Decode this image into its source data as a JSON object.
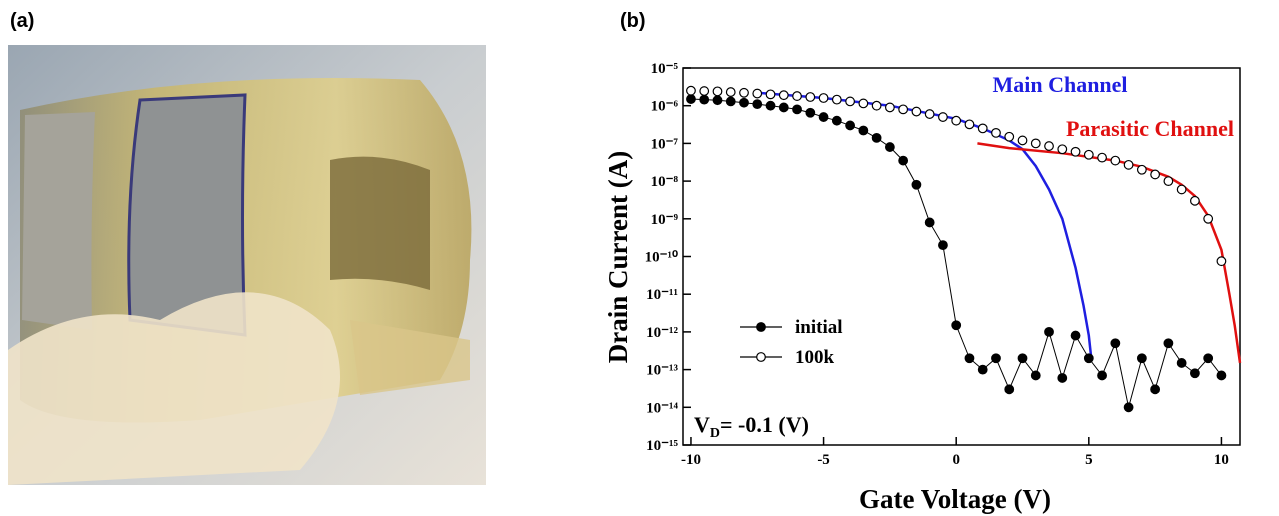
{
  "panel_labels": [
    "(a)",
    "(b)"
  ],
  "chart_data": {
    "type": "scatter",
    "xlabel": "Gate Voltage (V)",
    "ylabel": "Drain Current (A)",
    "log_y": true,
    "xlim": [
      -10.3,
      10.7
    ],
    "xticks": [
      -10,
      -5,
      0,
      5,
      10
    ],
    "ylim": [
      1e-15,
      1e-05
    ],
    "yticks": [
      {
        "value": 1e-05,
        "label": "10⁻⁵"
      },
      {
        "value": 1e-06,
        "label": "10⁻⁶"
      },
      {
        "value": 1e-07,
        "label": "10⁻⁷"
      },
      {
        "value": 1e-08,
        "label": "10⁻⁸"
      },
      {
        "value": 1e-09,
        "label": "10⁻⁹"
      },
      {
        "value": 1e-10,
        "label": "10⁻¹⁰"
      },
      {
        "value": 1e-11,
        "label": "10⁻¹¹"
      },
      {
        "value": 1e-12,
        "label": "10⁻¹²"
      },
      {
        "value": 1e-13,
        "label": "10⁻¹³"
      },
      {
        "value": 1e-14,
        "label": "10⁻¹⁴"
      },
      {
        "value": 1e-15,
        "label": "10⁻¹⁵"
      }
    ],
    "x": [
      -10,
      -9.5,
      -9,
      -8.5,
      -8,
      -7.5,
      -7,
      -6.5,
      -6,
      -5.5,
      -5,
      -4.5,
      -4,
      -3.5,
      -3,
      -2.5,
      -2,
      -1.5,
      -1,
      -0.5,
      0,
      0.5,
      1,
      1.5,
      2,
      2.5,
      3,
      3.5,
      4,
      4.5,
      5,
      5.5,
      6,
      6.5,
      7,
      7.5,
      8,
      8.5,
      9,
      9.5,
      10
    ],
    "series": [
      {
        "name": "initial",
        "color": "#000000",
        "filled": true,
        "connected": true,
        "values": [
          1.5e-06,
          1.45e-06,
          1.4e-06,
          1.3e-06,
          1.2e-06,
          1.1e-06,
          1e-06,
          9e-07,
          8e-07,
          6.5e-07,
          5e-07,
          4e-07,
          3e-07,
          2.2e-07,
          1.4e-07,
          8e-08,
          3.5e-08,
          8e-09,
          8e-10,
          2e-10,
          1.5e-12,
          2e-13,
          1e-13,
          2e-13,
          3e-14,
          2e-13,
          7e-14,
          1e-12,
          6e-14,
          8e-13,
          2e-13,
          7e-14,
          5e-13,
          1e-14,
          2e-13,
          3e-14,
          5e-13,
          1.5e-13,
          8e-14,
          2e-13,
          7e-14
        ]
      },
      {
        "name": "100k",
        "color": "#000000",
        "filled": false,
        "connected": false,
        "values": [
          2.5e-06,
          2.45e-06,
          2.4e-06,
          2.3e-06,
          2.2e-06,
          2.1e-06,
          2e-06,
          1.9e-06,
          1.8e-06,
          1.7e-06,
          1.6e-06,
          1.45e-06,
          1.3e-06,
          1.15e-06,
          1e-06,
          9e-07,
          8e-07,
          7e-07,
          6e-07,
          5e-07,
          4e-07,
          3.2e-07,
          2.5e-07,
          1.9e-07,
          1.5e-07,
          1.2e-07,
          1e-07,
          8.5e-08,
          7e-08,
          6e-08,
          5e-08,
          4.2e-08,
          3.5e-08,
          2.7e-08,
          2e-08,
          1.5e-08,
          1e-08,
          6e-09,
          3e-09,
          1e-09,
          7.5e-11
        ]
      }
    ],
    "annotations": [
      {
        "text": "Main Channel",
        "color": "#1f1fe0",
        "x": [
          -7.5,
          -5,
          -2.5,
          0,
          1,
          2,
          2.5,
          3,
          3.5,
          4,
          4.5,
          4.8,
          5,
          5.1
        ],
        "values": [
          2.2e-06,
          1.6e-06,
          1e-06,
          4.5e-07,
          2.5e-07,
          1.2e-07,
          7e-08,
          2.5e-08,
          6e-09,
          1e-09,
          5e-11,
          5e-12,
          8e-13,
          1.8e-13
        ]
      },
      {
        "text": "Parasitic Channel",
        "color": "#e01010",
        "x": [
          0.8,
          2,
          4,
          6,
          7,
          8,
          8.5,
          9,
          9.5,
          10,
          10.3,
          10.5,
          10.7
        ],
        "values": [
          1e-07,
          7.5e-08,
          5.5e-08,
          3.5e-08,
          2.4e-08,
          1.3e-08,
          8e-09,
          4e-09,
          1.2e-09,
          1.5e-10,
          1e-11,
          1.5e-12,
          1.5e-13
        ]
      }
    ],
    "condition": {
      "symbol": "V",
      "subscript": "D",
      "text": "= -0.1 (V)"
    }
  }
}
